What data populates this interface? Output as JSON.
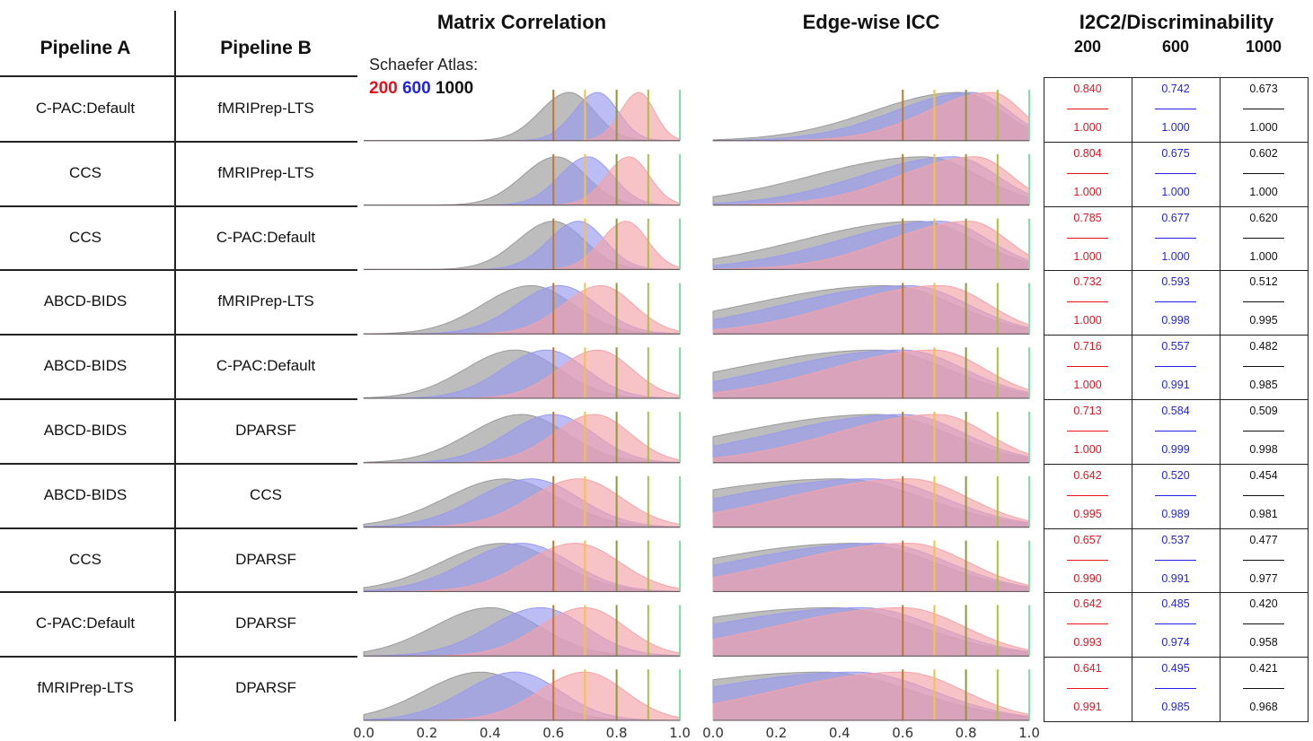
{
  "headers": {
    "pipeline_a": "Pipeline A",
    "pipeline_b": "Pipeline B",
    "matrix": "Matrix Correlation",
    "icc": "Edge-wise ICC",
    "i2c2": "I2C2/Discriminability",
    "atlas_label": "Schaefer Atlas:",
    "atlas_200": "200",
    "atlas_600": "600",
    "atlas_1000": "1000",
    "col_200": "200",
    "col_600": "600",
    "col_1000": "1000"
  },
  "colors": {
    "p200": "#e8121d",
    "p600": "#2323e6",
    "p1000": "#111111",
    "fill200": "#f4a3a8",
    "fill600": "#9a9af0",
    "fill1000": "#9a9a9a"
  },
  "chart_data": {
    "type": "area",
    "x_ticks": [
      "0.0",
      "0.2",
      "0.4",
      "0.6",
      "0.8",
      "1.0"
    ],
    "xlim": [
      0,
      1
    ],
    "reference_lines": [
      0.6,
      0.7,
      0.8,
      0.9,
      1.0
    ],
    "rows": [
      {
        "a": "C-PAC:Default",
        "b": "fMRIPrep-LTS",
        "i2c2": {
          "200": "0.840",
          "600": "0.742",
          "1000": "0.673"
        },
        "disc": {
          "200": "1.000",
          "600": "1.000",
          "1000": "1.000"
        },
        "matrix_peaks": {
          "200": 0.87,
          "600": 0.74,
          "1000": 0.65
        },
        "icc_peaks": {
          "200": 0.88,
          "600": 0.82,
          "1000": 0.78
        }
      },
      {
        "a": "CCS",
        "b": "fMRIPrep-LTS",
        "i2c2": {
          "200": "0.804",
          "600": "0.675",
          "1000": "0.602"
        },
        "disc": {
          "200": "1.000",
          "600": "1.000",
          "1000": "1.000"
        },
        "matrix_peaks": {
          "200": 0.84,
          "600": 0.71,
          "1000": 0.61
        },
        "icc_peaks": {
          "200": 0.83,
          "600": 0.76,
          "1000": 0.67
        }
      },
      {
        "a": "CCS",
        "b": "C-PAC:Default",
        "i2c2": {
          "200": "0.785",
          "600": "0.677",
          "1000": "0.620"
        },
        "disc": {
          "200": "1.000",
          "600": "1.000",
          "1000": "1.000"
        },
        "matrix_peaks": {
          "200": 0.83,
          "600": 0.68,
          "1000": 0.6
        },
        "icc_peaks": {
          "200": 0.81,
          "600": 0.72,
          "1000": 0.65
        }
      },
      {
        "a": "ABCD-BIDS",
        "b": "fMRIPrep-LTS",
        "i2c2": {
          "200": "0.732",
          "600": "0.593",
          "1000": "0.512"
        },
        "disc": {
          "200": "1.000",
          "600": "0.998",
          "1000": "0.995"
        },
        "matrix_peaks": {
          "200": 0.75,
          "600": 0.62,
          "1000": 0.53
        },
        "icc_peaks": {
          "200": 0.72,
          "600": 0.62,
          "1000": 0.55
        }
      },
      {
        "a": "ABCD-BIDS",
        "b": "C-PAC:Default",
        "i2c2": {
          "200": "0.716",
          "600": "0.557",
          "1000": "0.482"
        },
        "disc": {
          "200": "1.000",
          "600": "0.991",
          "1000": "0.985"
        },
        "matrix_peaks": {
          "200": 0.74,
          "600": 0.58,
          "1000": 0.48
        },
        "icc_peaks": {
          "200": 0.7,
          "600": 0.6,
          "1000": 0.52
        }
      },
      {
        "a": "ABCD-BIDS",
        "b": "DPARSF",
        "i2c2": {
          "200": "0.713",
          "600": "0.584",
          "1000": "0.509"
        },
        "disc": {
          "200": "1.000",
          "600": "0.999",
          "1000": "0.998"
        },
        "matrix_peaks": {
          "200": 0.73,
          "600": 0.6,
          "1000": 0.5
        },
        "icc_peaks": {
          "200": 0.71,
          "600": 0.6,
          "1000": 0.52
        }
      },
      {
        "a": "ABCD-BIDS",
        "b": "CCS",
        "i2c2": {
          "200": "0.642",
          "600": "0.520",
          "1000": "0.454"
        },
        "disc": {
          "200": "0.995",
          "600": "0.989",
          "1000": "0.981"
        },
        "matrix_peaks": {
          "200": 0.68,
          "600": 0.53,
          "1000": 0.45
        },
        "icc_peaks": {
          "200": 0.62,
          "600": 0.5,
          "1000": 0.4
        }
      },
      {
        "a": "CCS",
        "b": "DPARSF",
        "i2c2": {
          "200": "0.657",
          "600": "0.537",
          "1000": "0.477"
        },
        "disc": {
          "200": "0.990",
          "600": "0.991",
          "1000": "0.977"
        },
        "matrix_peaks": {
          "200": 0.67,
          "600": 0.5,
          "1000": 0.44
        },
        "icc_peaks": {
          "200": 0.62,
          "600": 0.52,
          "1000": 0.45
        }
      },
      {
        "a": "C-PAC:Default",
        "b": "DPARSF",
        "i2c2": {
          "200": "0.642",
          "600": "0.485",
          "1000": "0.420"
        },
        "disc": {
          "200": "0.993",
          "600": "0.974",
          "1000": "0.958"
        },
        "matrix_peaks": {
          "200": 0.7,
          "600": 0.56,
          "1000": 0.4
        },
        "icc_peaks": {
          "200": 0.6,
          "600": 0.47,
          "1000": 0.38
        }
      },
      {
        "a": "fMRIPrep-LTS",
        "b": "DPARSF",
        "i2c2": {
          "200": "0.641",
          "600": "0.495",
          "1000": "0.421"
        },
        "disc": {
          "200": "0.991",
          "600": "0.985",
          "1000": "0.968"
        },
        "matrix_peaks": {
          "200": 0.7,
          "600": 0.48,
          "1000": 0.37
        },
        "icc_peaks": {
          "200": 0.6,
          "600": 0.45,
          "1000": 0.35
        }
      }
    ]
  }
}
